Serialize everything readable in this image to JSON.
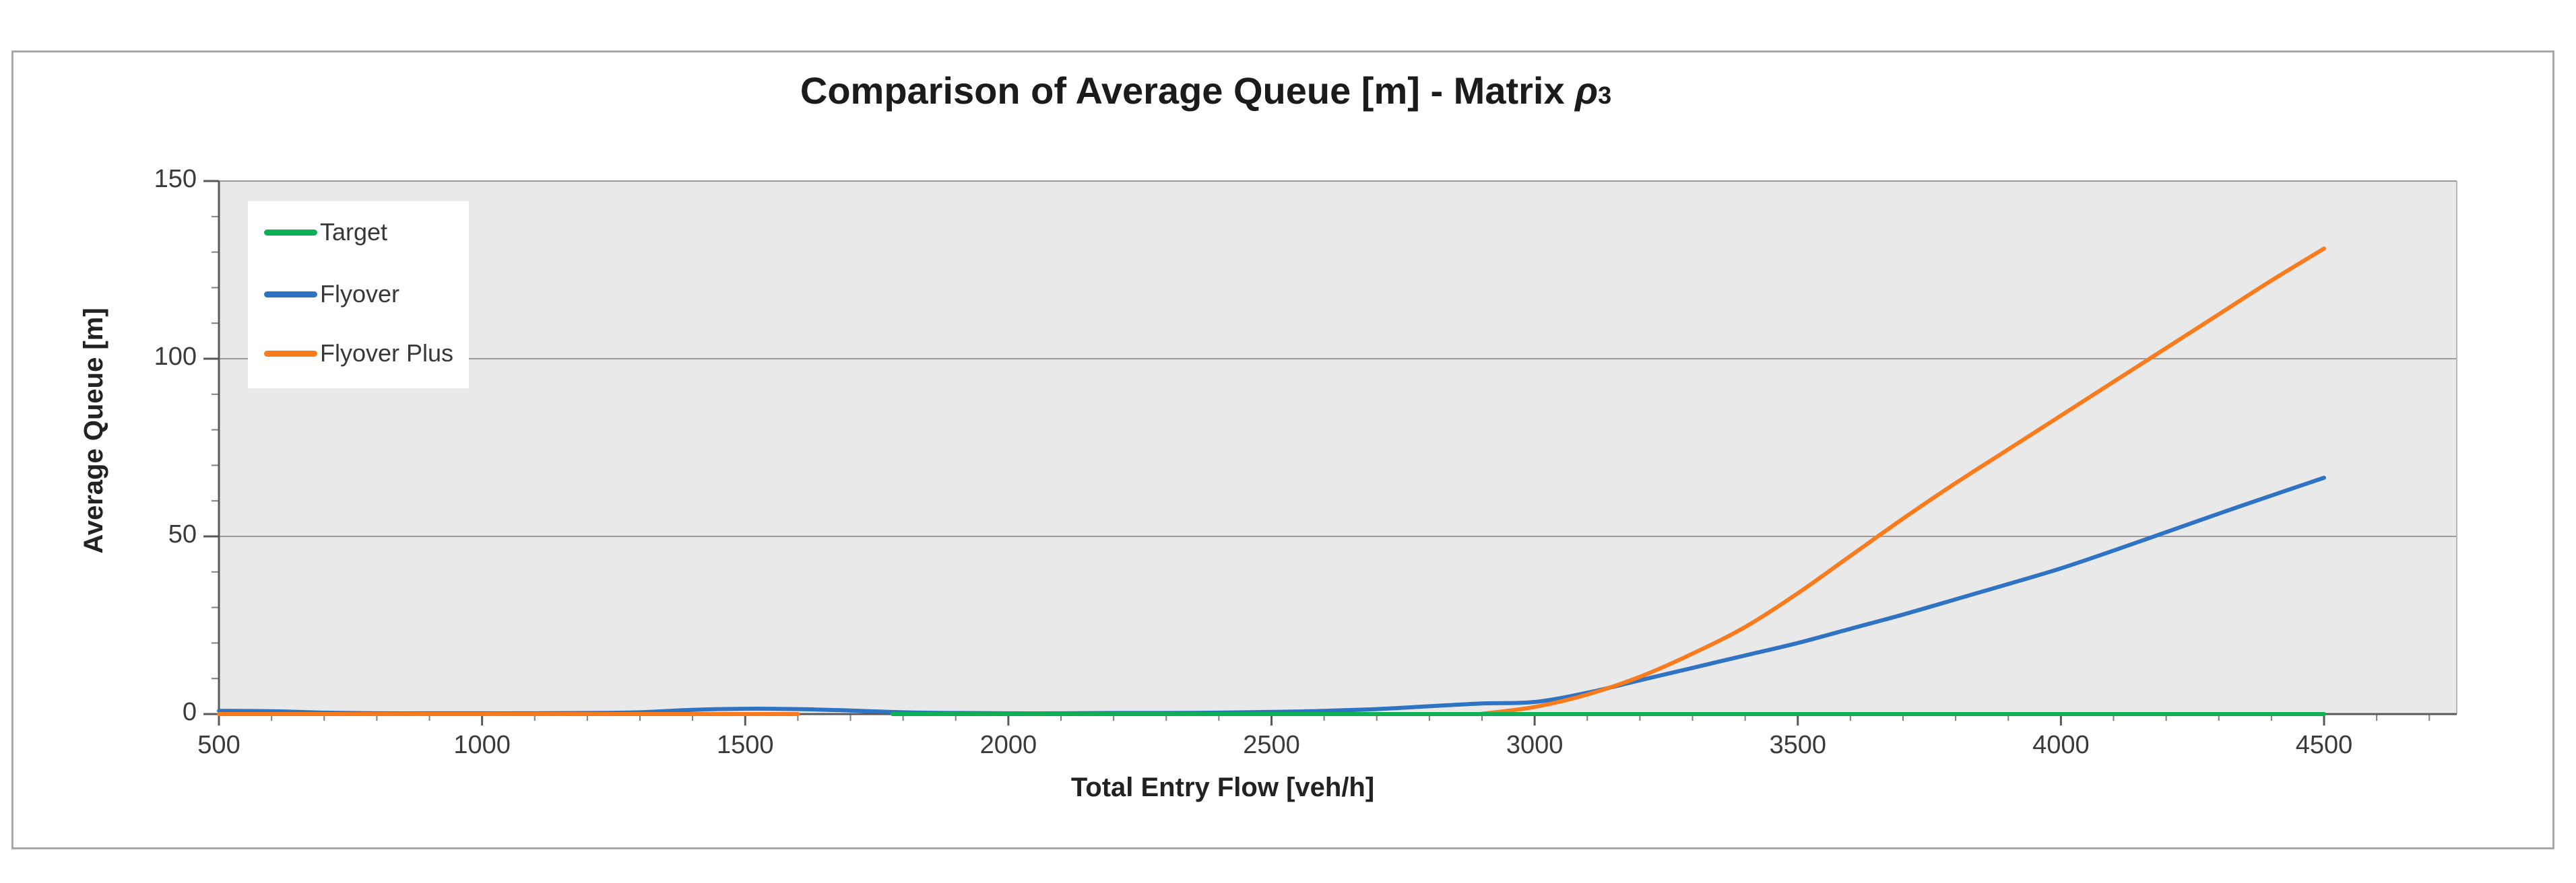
{
  "title": {
    "prefix": "Comparison of Average Queue [m] - Matrix ",
    "symbol": "ρ",
    "subscript": "3"
  },
  "legend": {
    "items": [
      {
        "label": "Target",
        "color": "#0FAF56"
      },
      {
        "label": "Flyover",
        "color": "#2E73C4"
      },
      {
        "label": "Flyover Plus",
        "color": "#F87B1E"
      }
    ]
  },
  "axes": {
    "x_title": "Total Entry Flow [veh/h]",
    "y_title": "Average Queue [m]"
  },
  "chart_data": {
    "type": "line",
    "title": "Comparison of Average Queue [m] - Matrix ρ3",
    "xlabel": "Total Entry Flow [veh/h]",
    "ylabel": "Average Queue [m]",
    "xlim": [
      500,
      4750
    ],
    "ylim": [
      0,
      150
    ],
    "x_major_ticks": [
      500,
      1000,
      1500,
      2000,
      2500,
      3000,
      3500,
      4000,
      4500
    ],
    "x_minor_step": 100,
    "y_major_ticks": [
      0,
      50,
      100,
      150
    ],
    "y_minor_step": 10,
    "grid": "horizontal",
    "legend_position": "top-left",
    "x": [
      500,
      600,
      700,
      800,
      900,
      1000,
      1100,
      1200,
      1300,
      1400,
      1500,
      1600,
      1700,
      1800,
      1900,
      2000,
      2100,
      2200,
      2300,
      2400,
      2500,
      2600,
      2700,
      2800,
      2900,
      3000,
      3100,
      3200,
      3300,
      3400,
      3500,
      3600,
      3700,
      3800,
      3900,
      4000,
      4100,
      4200,
      4300,
      4400,
      4500
    ],
    "series": [
      {
        "name": "Target",
        "color": "#0FAF56",
        "values": [
          0,
          0,
          0,
          0,
          0,
          0,
          0,
          0,
          0,
          0,
          0,
          0,
          0,
          0,
          0,
          0,
          0,
          0,
          0,
          0,
          0,
          0,
          0,
          0,
          0,
          0,
          0,
          0,
          0,
          0,
          0,
          0,
          0,
          0,
          0,
          0,
          0,
          0,
          0,
          0,
          0
        ]
      },
      {
        "name": "Flyover",
        "color": "#2E73C4",
        "values": [
          0.9,
          0.8,
          0.4,
          0.2,
          0.2,
          0.2,
          0.2,
          0.3,
          0.5,
          1.2,
          1.5,
          1.4,
          1.0,
          0.5,
          0.3,
          0.2,
          0.2,
          0.3,
          0.3,
          0.4,
          0.6,
          0.9,
          1.4,
          2.2,
          3.0,
          3.4,
          6.0,
          9.5,
          13.0,
          16.5,
          20.0,
          24.0,
          28.0,
          32.3,
          36.6,
          41.0,
          46.0,
          51.2,
          56.4,
          61.5,
          66.5
        ]
      },
      {
        "name": "Flyover Plus",
        "color": "#F87B1E",
        "values": [
          0,
          0,
          0,
          0,
          0,
          0,
          0,
          0,
          0,
          0,
          0,
          0,
          0,
          0,
          0,
          0,
          0,
          0,
          0,
          0,
          0,
          0,
          0,
          0,
          0.1,
          2.0,
          5.5,
          10.5,
          17.0,
          24.5,
          34.0,
          44.5,
          55.0,
          65.0,
          74.5,
          84.0,
          93.5,
          103.0,
          112.5,
          122.0,
          131.0
        ]
      }
    ],
    "style": {
      "plot_bg": "#E9E9E9",
      "grid_color": "#9B9B9B",
      "plot_border_color": "#B7B7B7",
      "axis_color": "#595959",
      "minor_tick_color": "#7F7F7F",
      "tick_label_color": "#3A3A3A"
    }
  }
}
